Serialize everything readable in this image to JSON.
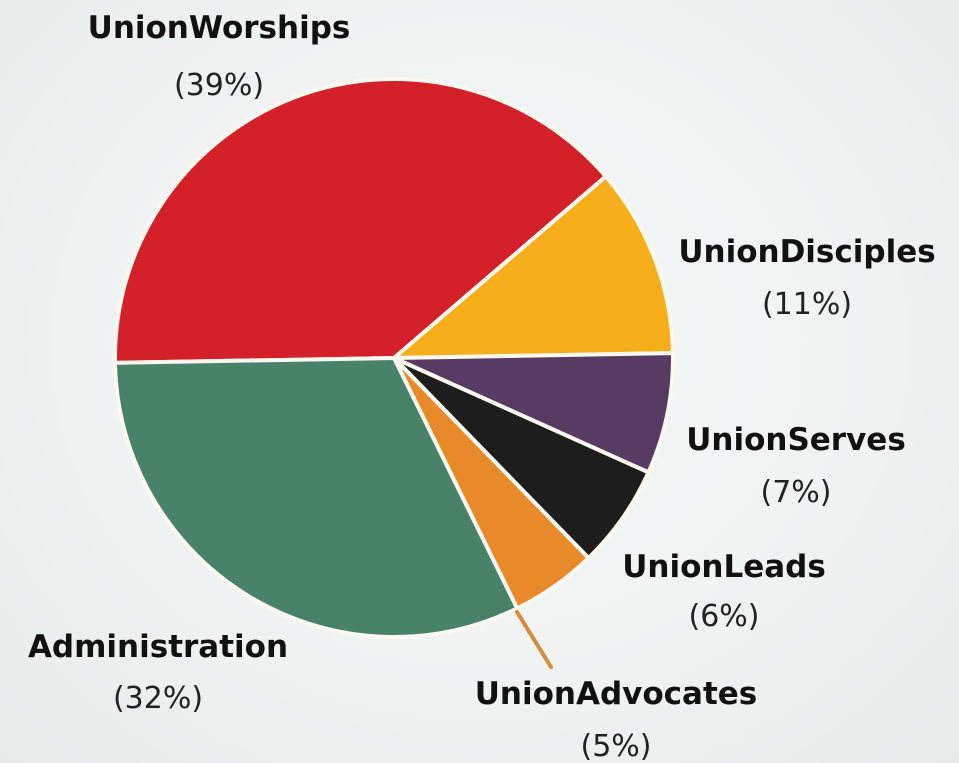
{
  "chart_data": {
    "type": "pie",
    "slices": [
      {
        "name": "UnionWorships",
        "pct_label": "(39%)",
        "value": 39,
        "color": "#d42129"
      },
      {
        "name": "UnionDisciples",
        "pct_label": "(11%)",
        "value": 11,
        "color": "#f6ae1b"
      },
      {
        "name": "UnionServes",
        "pct_label": "(7%)",
        "value": 7,
        "color": "#583b62"
      },
      {
        "name": "UnionLeads",
        "pct_label": "(6%)",
        "value": 6,
        "color": "#1d1d1d"
      },
      {
        "name": "UnionAdvocates",
        "pct_label": "(5%)",
        "value": 5,
        "color": "#e8892a"
      },
      {
        "name": "Administration",
        "pct_label": "(32%)",
        "value": 32,
        "color": "#488269"
      }
    ],
    "callout_color": "#d98b3c"
  }
}
